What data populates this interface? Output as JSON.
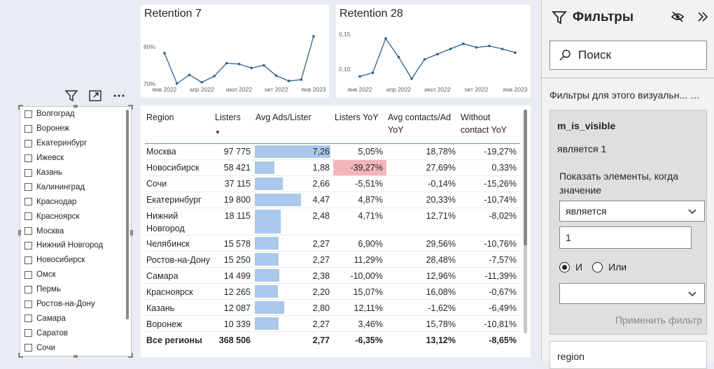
{
  "colors": {
    "accent_line": "#2e5f8a",
    "bar": "#a9c8ea",
    "negative_bg": "#f4b6bd"
  },
  "chart_data": [
    {
      "type": "line",
      "title": "Retention 7",
      "x": [
        "янв 2022",
        "фев 2022",
        "мар 2022",
        "апр 2022",
        "май 2022",
        "июн 2022",
        "июл 2022",
        "авг 2022",
        "сен 2022",
        "окт 2022",
        "ноя 2022",
        "дек 2022",
        "янв 2023"
      ],
      "x_tick_labels": [
        "янв 2022",
        "апр 2022",
        "июл 2022",
        "окт 2022",
        "янв 2023"
      ],
      "values": [
        77.7,
        70.7,
        72.7,
        71.0,
        72.4,
        75.4,
        75.2,
        74.3,
        74.9,
        72.5,
        71.3,
        71.6,
        81.6
      ],
      "y_tick_labels": [
        "80%",
        "70%"
      ],
      "ylim": [
        69.5,
        84
      ]
    },
    {
      "type": "line",
      "title": "Retention 28",
      "x": [
        "янв 2022",
        "фев 2022",
        "мар 2022",
        "апр 2022",
        "май 2022",
        "июн 2022",
        "июл 2022",
        "авг 2022",
        "сен 2022",
        "окт 2022",
        "ноя 2022",
        "дек 2022",
        "янв 2023"
      ],
      "x_tick_labels": [
        "янв 2022",
        "апр 2022",
        "июл 2022",
        "окт 2022",
        "янв 2023"
      ],
      "values": [
        0.097,
        0.102,
        0.148,
        0.123,
        0.094,
        0.12,
        0.127,
        0.134,
        0.141,
        0.136,
        0.138,
        0.134,
        0.129
      ],
      "y_tick_labels": [
        "0,15",
        "0,10"
      ],
      "ylim": [
        0.088,
        0.165
      ]
    }
  ],
  "slicer": {
    "items": [
      "Волгоград",
      "Воронеж",
      "Екатеринбург",
      "Ижевск",
      "Казань",
      "Калининград",
      "Краснодар",
      "Красноярск",
      "Москва",
      "Нижний Новгород",
      "Новосибирск",
      "Омск",
      "Пермь",
      "Ростов-на-Дону",
      "Самара",
      "Саратов",
      "Сочи"
    ]
  },
  "table": {
    "headers": [
      "Region",
      "Listers",
      "Avg Ads/Lister",
      "Listers YoY",
      "Avg contacts/Ad YoY",
      "Without contact YoY"
    ],
    "bar_max": 7.26,
    "rows": [
      {
        "region": "Москва",
        "listers": "97 775",
        "avg": "7,26",
        "avg_value": 7.26,
        "listers_yoy": "5,05%",
        "contacts_yoy": "18,78%",
        "without": "-19,27%",
        "highlight": false
      },
      {
        "region": "Новосибирск",
        "listers": "58 421",
        "avg": "1,88",
        "avg_value": 1.88,
        "listers_yoy": "-39,27%",
        "contacts_yoy": "27,69%",
        "without": "0,33%",
        "highlight": true
      },
      {
        "region": "Сочи",
        "listers": "37 115",
        "avg": "2,66",
        "avg_value": 2.66,
        "listers_yoy": "-5,51%",
        "contacts_yoy": "-0,14%",
        "without": "-15,26%",
        "highlight": false
      },
      {
        "region": "Екатеринбург",
        "listers": "19 800",
        "avg": "4,47",
        "avg_value": 4.47,
        "listers_yoy": "4,87%",
        "contacts_yoy": "20,33%",
        "without": "-10,74%",
        "highlight": false
      },
      {
        "region": "Нижний Новгород",
        "listers": "18 115",
        "avg": "2,48",
        "avg_value": 2.48,
        "listers_yoy": "4,71%",
        "contacts_yoy": "12,71%",
        "without": "-8,02%",
        "highlight": false
      },
      {
        "region": "Челябинск",
        "listers": "15 578",
        "avg": "2,27",
        "avg_value": 2.27,
        "listers_yoy": "6,90%",
        "contacts_yoy": "29,56%",
        "without": "-10,76%",
        "highlight": false
      },
      {
        "region": "Ростов-на-Дону",
        "listers": "15 250",
        "avg": "2,27",
        "avg_value": 2.27,
        "listers_yoy": "11,29%",
        "contacts_yoy": "28,48%",
        "without": "-7,57%",
        "highlight": false
      },
      {
        "region": "Самара",
        "listers": "14 499",
        "avg": "2,38",
        "avg_value": 2.38,
        "listers_yoy": "-10,00%",
        "contacts_yoy": "12,96%",
        "without": "-11,39%",
        "highlight": false
      },
      {
        "region": "Красноярск",
        "listers": "12 265",
        "avg": "2,20",
        "avg_value": 2.2,
        "listers_yoy": "15,07%",
        "contacts_yoy": "16,08%",
        "without": "-0,67%",
        "highlight": false
      },
      {
        "region": "Казань",
        "listers": "12 087",
        "avg": "2,80",
        "avg_value": 2.8,
        "listers_yoy": "12,11%",
        "contacts_yoy": "-1,62%",
        "without": "-6,49%",
        "highlight": false
      },
      {
        "region": "Воронеж",
        "listers": "10 339",
        "avg": "2,27",
        "avg_value": 2.27,
        "listers_yoy": "3,46%",
        "contacts_yoy": "15,78%",
        "without": "-10,81%",
        "highlight": false
      }
    ],
    "total": {
      "region": "Все регионы",
      "listers": "368 506",
      "avg": "2,77",
      "listers_yoy": "-6,35%",
      "contacts_yoy": "13,12%",
      "without": "-8,65%"
    }
  },
  "filters": {
    "title": "Фильтры",
    "search_placeholder": "Поиск",
    "section_title": "Фильтры для этого визуальн... …",
    "card": {
      "field": "m_is_visible",
      "state": "является 1",
      "show_label": "Показать элементы, когда значение",
      "operator": "является",
      "value": "1",
      "radio_and": "И",
      "radio_or": "Или",
      "second_operator": "",
      "apply": "Применить фильтр"
    },
    "next_card": "region"
  }
}
